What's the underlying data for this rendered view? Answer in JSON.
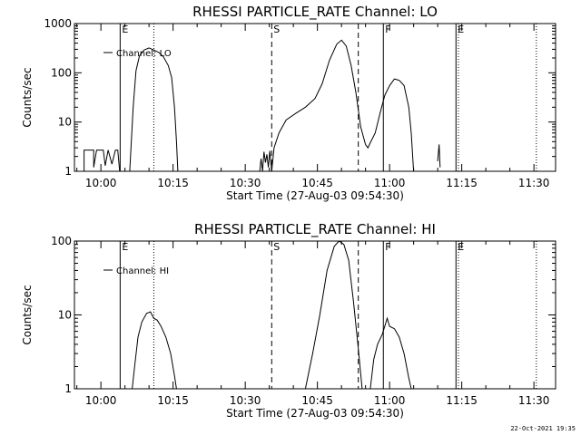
{
  "footer": {
    "timestamp": "22-Oct-2021 19:35"
  },
  "marker_lines": [
    {
      "label": "E",
      "x_min": 9.5,
      "style": "solid"
    },
    {
      "label": "",
      "x_min": 16.5,
      "style": "dotted"
    },
    {
      "label": "S",
      "x_min": 41.0,
      "style": "dashed"
    },
    {
      "label": "",
      "x_min": 59.0,
      "style": "dashed"
    },
    {
      "label": "F",
      "x_min": 64.2,
      "style": "solid"
    },
    {
      "label": "E",
      "x_min": 79.3,
      "style": "solid"
    },
    {
      "label": "",
      "x_min": 79.8,
      "style": "dotted"
    },
    {
      "label": "",
      "x_min": 96.0,
      "style": "dotted"
    }
  ],
  "chart_data": [
    {
      "type": "line",
      "title": "RHESSI PARTICLE_RATE Channel: LO",
      "xlabel": "Start Time (27-Aug-03 09:54:30)",
      "ylabel": "Counts/sec",
      "x_unit": "minutes after 09:54:30",
      "xlim": [
        0,
        100
      ],
      "ylim": [
        1,
        1000
      ],
      "yscale": "log",
      "xticks": [
        {
          "x": 5.5,
          "label": "10:00"
        },
        {
          "x": 20.5,
          "label": "10:15"
        },
        {
          "x": 35.5,
          "label": "10:30"
        },
        {
          "x": 50.5,
          "label": "10:45"
        },
        {
          "x": 65.5,
          "label": "11:00"
        },
        {
          "x": 80.5,
          "label": "11:15"
        },
        {
          "x": 95.5,
          "label": "11:30"
        }
      ],
      "yticks": [
        {
          "y": 1,
          "label": "1"
        },
        {
          "y": 10,
          "label": "10"
        },
        {
          "y": 100,
          "label": "100"
        },
        {
          "y": 1000,
          "label": "1000"
        }
      ],
      "legend": {
        "position": "top-left",
        "entries": [
          "Channel: LO"
        ]
      },
      "series": [
        {
          "name": "Channel: LO",
          "segments": [
            [
              [
                2,
                1
              ],
              [
                2,
                2.7
              ],
              [
                4,
                2.7
              ],
              [
                4,
                1.2
              ],
              [
                4.6,
                2.7
              ],
              [
                6,
                2.7
              ],
              [
                6.4,
                1.3
              ],
              [
                7,
                2.7
              ],
              [
                7.8,
                1.4
              ],
              [
                8.5,
                2.7
              ],
              [
                9,
                2.7
              ],
              [
                9.4,
                1
              ]
            ],
            [
              [
                11.5,
                1
              ],
              [
                12.2,
                20
              ],
              [
                12.8,
                110
              ],
              [
                13.5,
                220
              ],
              [
                14.5,
                290
              ],
              [
                15.5,
                320
              ],
              [
                16.5,
                290
              ],
              [
                17.5,
                260
              ],
              [
                18.5,
                210
              ],
              [
                19.5,
                140
              ],
              [
                20.2,
                80
              ],
              [
                20.8,
                20
              ],
              [
                21.2,
                4
              ],
              [
                21.5,
                1
              ]
            ],
            [
              [
                38.5,
                1
              ],
              [
                38.8,
                1.8
              ],
              [
                39.1,
                1
              ],
              [
                39.4,
                2.5
              ],
              [
                39.7,
                1.5
              ],
              [
                40,
                2.2
              ],
              [
                40.3,
                1.2
              ],
              [
                40.6,
                2.6
              ],
              [
                41,
                1
              ]
            ],
            [
              [
                41,
                1
              ],
              [
                41.5,
                3
              ],
              [
                42.5,
                6
              ],
              [
                44,
                11
              ],
              [
                46,
                15
              ],
              [
                48,
                20
              ],
              [
                50,
                30
              ],
              [
                51.5,
                60
              ],
              [
                53,
                180
              ],
              [
                54.5,
                380
              ],
              [
                55.5,
                460
              ],
              [
                56.5,
                350
              ],
              [
                57.5,
                140
              ],
              [
                58.5,
                40
              ],
              [
                59.5,
                8
              ],
              [
                60.5,
                3.5
              ],
              [
                61,
                3
              ],
              [
                61.5,
                3.8
              ],
              [
                62.5,
                6
              ],
              [
                63.5,
                15
              ],
              [
                64.5,
                35
              ],
              [
                65.5,
                55
              ],
              [
                66.5,
                75
              ],
              [
                67.5,
                70
              ],
              [
                68.5,
                55
              ],
              [
                69.5,
                20
              ],
              [
                70,
                6
              ],
              [
                70.5,
                1
              ]
            ],
            [
              [
                75.5,
                1.6
              ],
              [
                75.8,
                3.5
              ],
              [
                76,
                1.2
              ]
            ]
          ]
        }
      ]
    },
    {
      "type": "line",
      "title": "RHESSI PARTICLE_RATE Channel: HI",
      "xlabel": "Start Time (27-Aug-03 09:54:30)",
      "ylabel": "Counts/sec",
      "x_unit": "minutes after 09:54:30",
      "xlim": [
        0,
        100
      ],
      "ylim": [
        1,
        100
      ],
      "yscale": "log",
      "xticks": [
        {
          "x": 5.5,
          "label": "10:00"
        },
        {
          "x": 20.5,
          "label": "10:15"
        },
        {
          "x": 35.5,
          "label": "10:30"
        },
        {
          "x": 50.5,
          "label": "10:45"
        },
        {
          "x": 65.5,
          "label": "11:00"
        },
        {
          "x": 80.5,
          "label": "11:15"
        },
        {
          "x": 95.5,
          "label": "11:30"
        }
      ],
      "yticks": [
        {
          "y": 1,
          "label": "1"
        },
        {
          "y": 10,
          "label": "10"
        },
        {
          "y": 100,
          "label": "100"
        }
      ],
      "legend": {
        "position": "top-left",
        "entries": [
          "Channel: HI"
        ]
      },
      "series": [
        {
          "name": "Channel: HI",
          "segments": [
            [
              [
                12,
                1
              ],
              [
                12.5,
                2
              ],
              [
                13.2,
                5
              ],
              [
                14,
                8
              ],
              [
                15,
                10.5
              ],
              [
                15.8,
                11
              ],
              [
                16.5,
                9
              ],
              [
                17.2,
                8.5
              ],
              [
                18,
                7
              ],
              [
                19,
                5
              ],
              [
                20,
                3
              ],
              [
                20.8,
                1.5
              ],
              [
                21.2,
                1
              ]
            ],
            [
              [
                48,
                1
              ],
              [
                49.5,
                3
              ],
              [
                51,
                10
              ],
              [
                52.5,
                40
              ],
              [
                54,
                85
              ],
              [
                55,
                100
              ],
              [
                56,
                90
              ],
              [
                57,
                55
              ],
              [
                58,
                15
              ],
              [
                59,
                3.5
              ],
              [
                59.8,
                1
              ]
            ],
            [
              [
                61.5,
                1
              ],
              [
                62.2,
                2.5
              ],
              [
                63,
                4
              ],
              [
                64,
                5.5
              ],
              [
                65,
                9
              ],
              [
                65.5,
                7
              ],
              [
                66.5,
                6.5
              ],
              [
                67.5,
                5
              ],
              [
                68.5,
                3
              ],
              [
                69.5,
                1.4
              ],
              [
                70,
                1
              ]
            ]
          ]
        }
      ]
    }
  ]
}
